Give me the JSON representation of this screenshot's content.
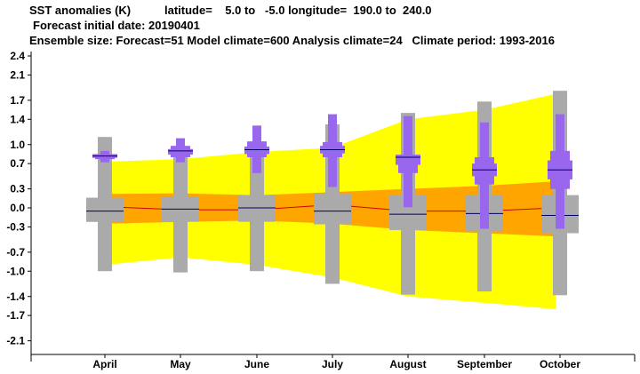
{
  "header": {
    "title": "SST anomalies (K)",
    "region": "latitude=    5.0 to   -5.0 longitude=  190.0 to  240.0",
    "initial_date": "Forecast initial date: 20190401",
    "ensemble": "Ensemble size: Forecast=51 Model climate=600 Analysis climate=24   Climate period: 1993-2016"
  },
  "colors": {
    "climate_outer": "#ffff00",
    "climate_inner": "#ffa500",
    "climate_median": "#cc0000",
    "forecast_box": "#9966ee",
    "model_climate_box": "#aaaaaa",
    "median_line": "#000066",
    "axis": "#000000"
  },
  "chart_data": {
    "type": "box",
    "title": "SST anomalies (K)",
    "ylim": [
      -2.4,
      2.6
    ],
    "yticks": [
      -2.1,
      -1.7,
      -1.4,
      -1.0,
      -0.7,
      -0.3,
      0.0,
      0.3,
      0.7,
      1.0,
      1.4,
      1.7,
      2.1,
      2.4
    ],
    "ytick_labels": [
      "-2.1",
      "-1.7",
      "-1.4",
      "-1.0",
      "-0.7",
      "-0.3",
      "0.0",
      "0.3",
      "0.7",
      "1.0",
      "1.4",
      "1.7",
      "2.1",
      "2.4"
    ],
    "categories": [
      "April",
      "May",
      "June",
      "July",
      "August",
      "September",
      "October"
    ],
    "analysis_climate_band": {
      "outer_low": [
        -0.9,
        -0.78,
        -0.9,
        -1.1,
        -1.4,
        -1.5,
        -1.6
      ],
      "outer_high": [
        0.73,
        0.77,
        0.88,
        0.95,
        1.4,
        1.55,
        1.8
      ],
      "inner_low": [
        -0.25,
        -0.22,
        -0.2,
        -0.25,
        -0.35,
        -0.4,
        -0.45
      ],
      "inner_high": [
        0.22,
        0.23,
        0.2,
        0.25,
        0.3,
        0.35,
        0.42
      ],
      "median": [
        0.02,
        -0.03,
        -0.03,
        0.05,
        -0.05,
        -0.05,
        0.0
      ]
    },
    "model_climate": {
      "min": [
        -1.0,
        -1.02,
        -1.0,
        -1.2,
        -1.37,
        -1.32,
        -1.38
      ],
      "p10": [
        -0.22,
        -0.22,
        -0.22,
        -0.26,
        -0.35,
        -0.37,
        -0.4
      ],
      "q25": [
        -0.22,
        -0.2,
        -0.2,
        -0.2,
        -0.25,
        -0.3,
        -0.3
      ],
      "median": [
        -0.05,
        -0.02,
        0.0,
        -0.05,
        -0.1,
        -0.09,
        -0.12
      ],
      "q75": [
        0.16,
        0.18,
        0.2,
        0.22,
        0.2,
        0.2,
        0.2
      ],
      "p90": [
        0.16,
        0.18,
        0.2,
        0.22,
        0.2,
        0.2,
        0.2
      ],
      "max": [
        1.12,
        0.97,
        1.05,
        1.32,
        1.5,
        1.68,
        1.85
      ]
    },
    "forecast": {
      "min": [
        0.72,
        0.72,
        0.55,
        0.33,
        0.01,
        -0.33,
        -0.33
      ],
      "p10": [
        0.77,
        0.8,
        0.8,
        0.8,
        0.55,
        0.37,
        0.3
      ],
      "q25": [
        0.79,
        0.84,
        0.85,
        0.86,
        0.68,
        0.5,
        0.45
      ],
      "median": [
        0.82,
        0.9,
        0.92,
        0.92,
        0.8,
        0.6,
        0.6
      ],
      "q75": [
        0.85,
        0.93,
        0.97,
        0.98,
        0.84,
        0.7,
        0.75
      ],
      "p90": [
        0.85,
        0.98,
        1.05,
        1.04,
        0.84,
        0.8,
        0.9
      ],
      "max": [
        0.9,
        1.1,
        1.3,
        1.48,
        1.45,
        1.35,
        1.48
      ]
    },
    "grid": false,
    "legend": "none"
  }
}
